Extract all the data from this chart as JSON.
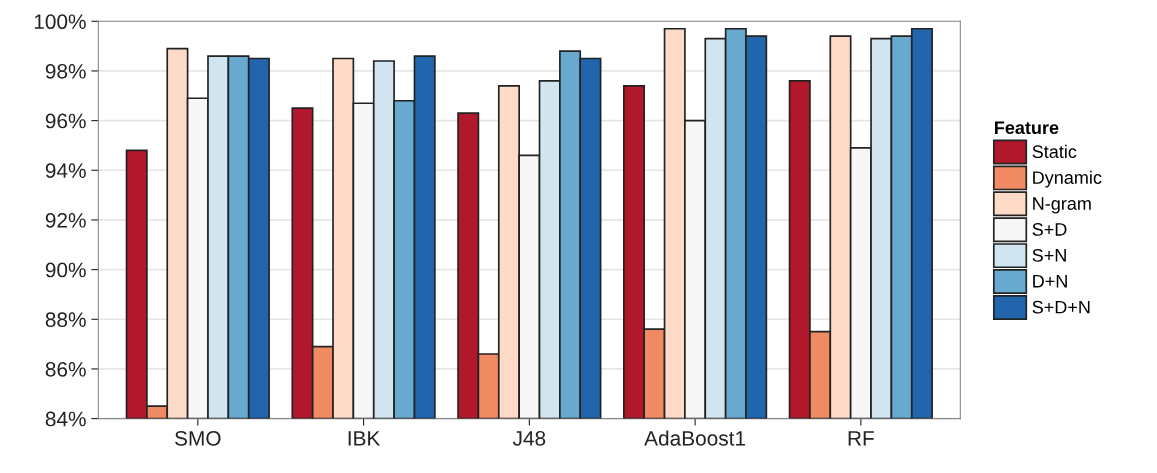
{
  "chart_data": {
    "type": "bar",
    "categories": [
      "SMO",
      "IBK",
      "J48",
      "AdaBoost1",
      "RF"
    ],
    "legend_title": "Feature",
    "series": [
      {
        "name": "Static",
        "color": "#b2182b",
        "values": [
          94.8,
          96.5,
          96.3,
          97.4,
          97.6
        ]
      },
      {
        "name": "Dynamic",
        "color": "#ef8a62",
        "values": [
          84.5,
          86.9,
          86.6,
          87.6,
          87.5
        ]
      },
      {
        "name": "N-gram",
        "color": "#fddbc7",
        "values": [
          98.9,
          98.5,
          97.4,
          99.7,
          99.4
        ]
      },
      {
        "name": "S+D",
        "color": "#f7f7f7",
        "values": [
          96.9,
          96.7,
          94.6,
          96.0,
          94.9
        ]
      },
      {
        "name": "S+N",
        "color": "#d1e5f0",
        "values": [
          98.6,
          98.4,
          97.6,
          99.3,
          99.3
        ]
      },
      {
        "name": "D+N",
        "color": "#67a9cf",
        "values": [
          98.6,
          96.8,
          98.8,
          99.7,
          99.4
        ]
      },
      {
        "name": "S+D+N",
        "color": "#2166ac",
        "values": [
          98.5,
          98.6,
          98.5,
          99.4,
          99.7
        ]
      }
    ],
    "ylim": [
      84,
      100
    ],
    "yticks": [
      {
        "value": 84,
        "label": "84%"
      },
      {
        "value": 86,
        "label": "86%"
      },
      {
        "value": 88,
        "label": "88%"
      },
      {
        "value": 90,
        "label": "90%"
      },
      {
        "value": 92,
        "label": "92%"
      },
      {
        "value": 94,
        "label": "94%"
      },
      {
        "value": 96,
        "label": "96%"
      },
      {
        "value": 98,
        "label": "98%"
      },
      {
        "value": 100,
        "label": "100%"
      }
    ],
    "grid": "y",
    "legend": "right"
  }
}
